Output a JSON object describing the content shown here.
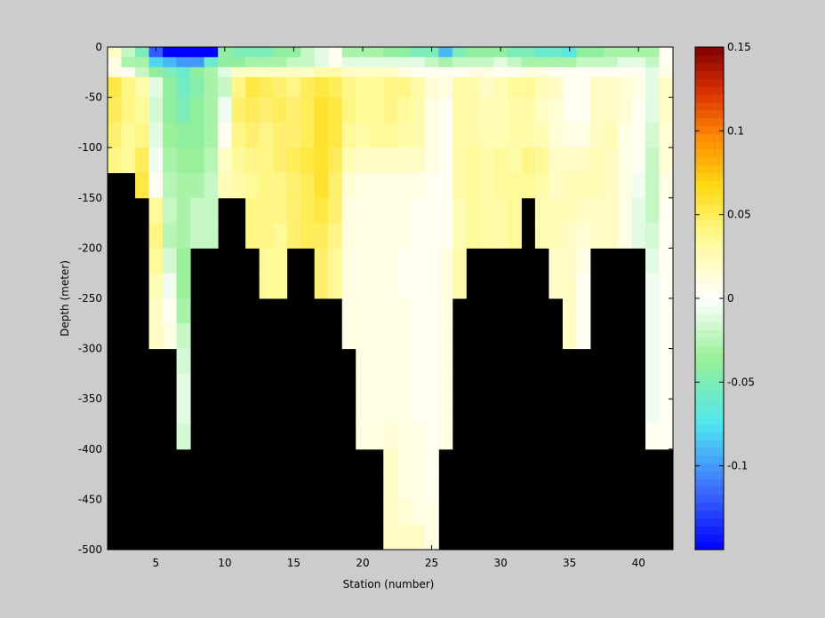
{
  "chart_data": {
    "type": "heatmap",
    "title": "",
    "xlabel": "Station (number)",
    "ylabel": "Depth (meter)",
    "x_range": [
      1.5,
      42.5
    ],
    "y_range": [
      -500,
      0
    ],
    "x_ticks": [
      5,
      10,
      15,
      20,
      25,
      30,
      35,
      40
    ],
    "y_ticks": [
      0,
      -50,
      -100,
      -150,
      -200,
      -250,
      -300,
      -350,
      -400,
      -450,
      -500
    ],
    "colorbar": {
      "range": [
        -0.15,
        0.15
      ],
      "ticks": [
        0.15,
        0.1,
        0.05,
        0,
        -0.05,
        -0.1
      ],
      "colormap": "jet-white-center"
    },
    "stations": [
      2,
      3,
      4,
      5,
      6,
      7,
      8,
      9,
      10,
      11,
      12,
      13,
      14,
      15,
      16,
      17,
      18,
      19,
      20,
      21,
      22,
      23,
      24,
      25,
      26,
      27,
      28,
      29,
      30,
      31,
      32,
      33,
      34,
      35,
      36,
      37,
      38,
      39,
      40,
      41,
      42
    ],
    "bottom_depth": [
      -125,
      -125,
      -150,
      -300,
      -300,
      -400,
      -200,
      -200,
      -150,
      -150,
      -200,
      -250,
      -250,
      -200,
      -200,
      -250,
      -250,
      -300,
      -400,
      -400,
      -500,
      -500,
      -500,
      -500,
      -400,
      -250,
      -200,
      -200,
      -200,
      -200,
      -150,
      -200,
      -250,
      -300,
      -300,
      -200,
      -200,
      -200,
      -200,
      -400,
      -400
    ],
    "depth_levels": [
      -5,
      -15,
      -25,
      -37.5,
      -62.5,
      -87.5,
      -112.5,
      -137.5,
      -162.5,
      -187.5,
      -212.5,
      -237.5,
      -262.5,
      -287.5,
      -312.5,
      -337.5,
      -362.5,
      -387.5,
      -412.5,
      -437.5,
      -462.5,
      -487.5
    ],
    "layer_values": {
      "surface": [
        0.02,
        -0.02,
        -0.05,
        -0.12,
        -0.15,
        -0.15,
        -0.15,
        -0.15,
        -0.04,
        -0.05,
        -0.05,
        -0.05,
        -0.04,
        -0.04,
        -0.02,
        -0.01,
        0.005,
        -0.03,
        -0.03,
        -0.03,
        -0.04,
        -0.04,
        -0.05,
        -0.05,
        -0.09,
        -0.05,
        -0.04,
        -0.04,
        -0.04,
        -0.05,
        -0.05,
        -0.06,
        -0.06,
        -0.07,
        -0.04,
        -0.04,
        -0.03,
        -0.03,
        -0.03,
        -0.03,
        0.005
      ],
      "mid": [
        0.01,
        -0.03,
        -0.03,
        -0.08,
        -0.09,
        -0.1,
        -0.1,
        -0.06,
        -0.04,
        -0.04,
        -0.03,
        -0.03,
        -0.03,
        -0.02,
        -0.02,
        -0.01,
        0.005,
        -0.01,
        -0.01,
        -0.01,
        -0.01,
        -0.01,
        -0.01,
        -0.02,
        -0.03,
        -0.02,
        -0.02,
        -0.02,
        -0.01,
        -0.02,
        -0.03,
        -0.03,
        -0.03,
        -0.03,
        -0.02,
        -0.02,
        -0.02,
        -0.01,
        -0.01,
        -0.02,
        0.005
      ],
      "thermocline": [
        0.01,
        0.005,
        -0.02,
        -0.04,
        -0.05,
        -0.06,
        -0.04,
        -0.03,
        -0.01,
        0.02,
        0.02,
        0.02,
        0.02,
        0.02,
        0.02,
        0.03,
        0.03,
        0.02,
        0.02,
        0.02,
        0.02,
        0.01,
        0.005,
        0.005,
        0.005,
        0.005,
        0.01,
        0.01,
        0.005,
        0.005,
        0.01,
        0.01,
        0.005,
        0.005,
        0.005,
        0.005,
        0.005,
        0.005,
        0.005,
        -0.01,
        0.01
      ]
    },
    "columns": [
      [
        0.055,
        0.05,
        0.045,
        0.04,
        0.035
      ],
      [
        0.04,
        0.04,
        0.035,
        0.035,
        0.04
      ],
      [
        0.03,
        0.035,
        0.04,
        0.05,
        0.055,
        0.03
      ],
      [
        -0.01,
        -0.015,
        -0.01,
        -0.005,
        0.005,
        0.035,
        0.04,
        0.035,
        0.025,
        0.02,
        0.02,
        0.015
      ],
      [
        -0.04,
        -0.04,
        -0.035,
        -0.03,
        -0.025,
        -0.02,
        -0.025,
        -0.015,
        -0.005,
        0.005,
        0.01,
        0.015
      ],
      [
        -0.055,
        -0.05,
        -0.04,
        -0.035,
        -0.03,
        -0.03,
        -0.03,
        -0.035,
        -0.035,
        -0.03,
        -0.02,
        -0.015,
        -0.01,
        -0.01,
        -0.015,
        -0.02
      ],
      [
        -0.045,
        -0.04,
        -0.04,
        -0.035,
        -0.03,
        -0.02
      ],
      [
        -0.03,
        -0.03,
        -0.03,
        -0.025,
        -0.02,
        -0.02
      ],
      [
        -0.02,
        -0.005,
        0.005,
        0.02,
        0.025
      ],
      [
        0.04,
        0.045,
        0.04,
        0.035,
        0.03
      ],
      [
        0.055,
        0.05,
        0.045,
        0.04,
        0.035,
        0.04
      ],
      [
        0.05,
        0.045,
        0.04,
        0.04,
        0.04,
        0.04,
        0.04,
        0.035
      ],
      [
        0.045,
        0.05,
        0.045,
        0.045,
        0.04,
        0.04,
        0.035,
        0.035
      ],
      [
        0.04,
        0.045,
        0.045,
        0.05,
        0.045,
        0.045
      ],
      [
        0.05,
        0.05,
        0.05,
        0.055,
        0.05,
        0.05
      ],
      [
        0.055,
        0.06,
        0.06,
        0.06,
        0.06,
        0.055,
        0.05,
        0.045
      ],
      [
        0.05,
        0.055,
        0.055,
        0.05,
        0.045,
        0.045,
        0.04,
        0.035
      ],
      [
        0.04,
        0.04,
        0.035,
        0.025,
        0.015,
        0.01,
        0.01,
        0.01,
        0.01,
        0.01
      ],
      [
        0.035,
        0.035,
        0.03,
        0.02,
        0.01,
        0.01,
        0.01,
        0.01,
        0.01,
        0.01,
        0.01,
        0.01,
        0.01,
        0.01,
        0.01,
        0.01
      ],
      [
        0.035,
        0.035,
        0.035,
        0.02,
        0.01,
        0.01,
        0.01,
        0.01,
        0.01,
        0.01,
        0.01,
        0.01,
        0.01,
        0.01,
        0.01,
        0.01
      ],
      [
        0.04,
        0.04,
        0.035,
        0.02,
        0.01,
        0.01,
        0.01,
        0.01,
        0.01,
        0.01,
        0.01,
        0.01,
        0.01,
        0.01,
        0.015,
        0.02,
        0.02,
        0.02,
        0.02,
        0.02
      ],
      [
        0.04,
        0.035,
        0.03,
        0.02,
        0.01,
        0.01,
        0.01,
        0.005,
        0.005,
        0.01,
        0.01,
        0.01,
        0.01,
        0.01,
        0.01,
        0.01,
        0.01,
        0.015,
        0.02,
        0.02
      ],
      [
        0.03,
        0.03,
        0.03,
        0.02,
        0.01,
        0.005,
        0.005,
        0.005,
        0.005,
        0.005,
        0.005,
        0.005,
        0.005,
        0.005,
        0.01,
        0.01,
        0.01,
        0.01,
        0.02,
        0.02
      ],
      [
        0.015,
        0.01,
        0.01,
        0.01,
        0.005,
        0.005,
        0.005,
        0.005,
        0.005,
        0.005,
        0.005,
        0.005,
        0.005,
        0.005,
        0.005,
        0.005,
        0.005,
        0.01,
        0.01,
        0.015
      ],
      [
        0.01,
        0.005,
        0.005,
        0.005,
        0.005,
        0.005,
        0.005,
        0.01,
        0.01,
        0.01,
        0.01,
        0.01,
        0.01,
        0.01,
        0.01,
        0.01
      ],
      [
        0.03,
        0.03,
        0.03,
        0.03,
        0.03,
        0.025,
        0.025,
        0.03
      ],
      [
        0.03,
        0.03,
        0.03,
        0.035,
        0.035,
        0.035
      ],
      [
        0.02,
        0.025,
        0.025,
        0.03,
        0.03,
        0.03
      ],
      [
        0.025,
        0.025,
        0.025,
        0.035,
        0.035,
        0.03
      ],
      [
        0.035,
        0.03,
        0.03,
        0.03,
        0.035,
        0.035
      ],
      [
        0.035,
        0.03,
        0.03,
        0.04,
        0.035
      ],
      [
        0.025,
        0.02,
        0.025,
        0.035,
        0.03,
        0.025
      ],
      [
        0.02,
        0.015,
        0.015,
        0.02,
        0.02,
        0.025,
        0.025,
        0.02
      ],
      [
        0.005,
        0.005,
        0.01,
        0.02,
        0.025,
        0.025,
        0.02,
        0.02,
        0.02,
        0.02
      ],
      [
        0.005,
        0.005,
        0.01,
        0.02,
        0.025,
        0.02,
        0.015,
        0.01,
        0.005,
        0.005
      ],
      [
        0.02,
        0.02,
        0.02,
        0.025,
        0.025,
        0.02
      ],
      [
        0.02,
        0.02,
        0.025,
        0.02,
        0.02,
        0.02
      ],
      [
        0.015,
        0.015,
        0.01,
        0.01,
        0.01,
        0.01
      ],
      [
        0.01,
        0.005,
        0.005,
        0.005,
        -0.005,
        -0.01
      ],
      [
        -0.01,
        -0.01,
        -0.015,
        -0.02,
        -0.02,
        -0.02,
        -0.015,
        -0.01,
        -0.005,
        -0.005,
        -0.005,
        -0.005,
        -0.005,
        -0.005,
        0.005,
        0.005
      ],
      [
        0.02,
        0.02,
        0.015,
        0.015,
        0.01,
        0.005,
        0.005,
        0.005,
        0.005,
        0.005,
        0.005,
        0.005,
        0.005,
        0.005,
        0.005,
        0.005
      ]
    ]
  }
}
